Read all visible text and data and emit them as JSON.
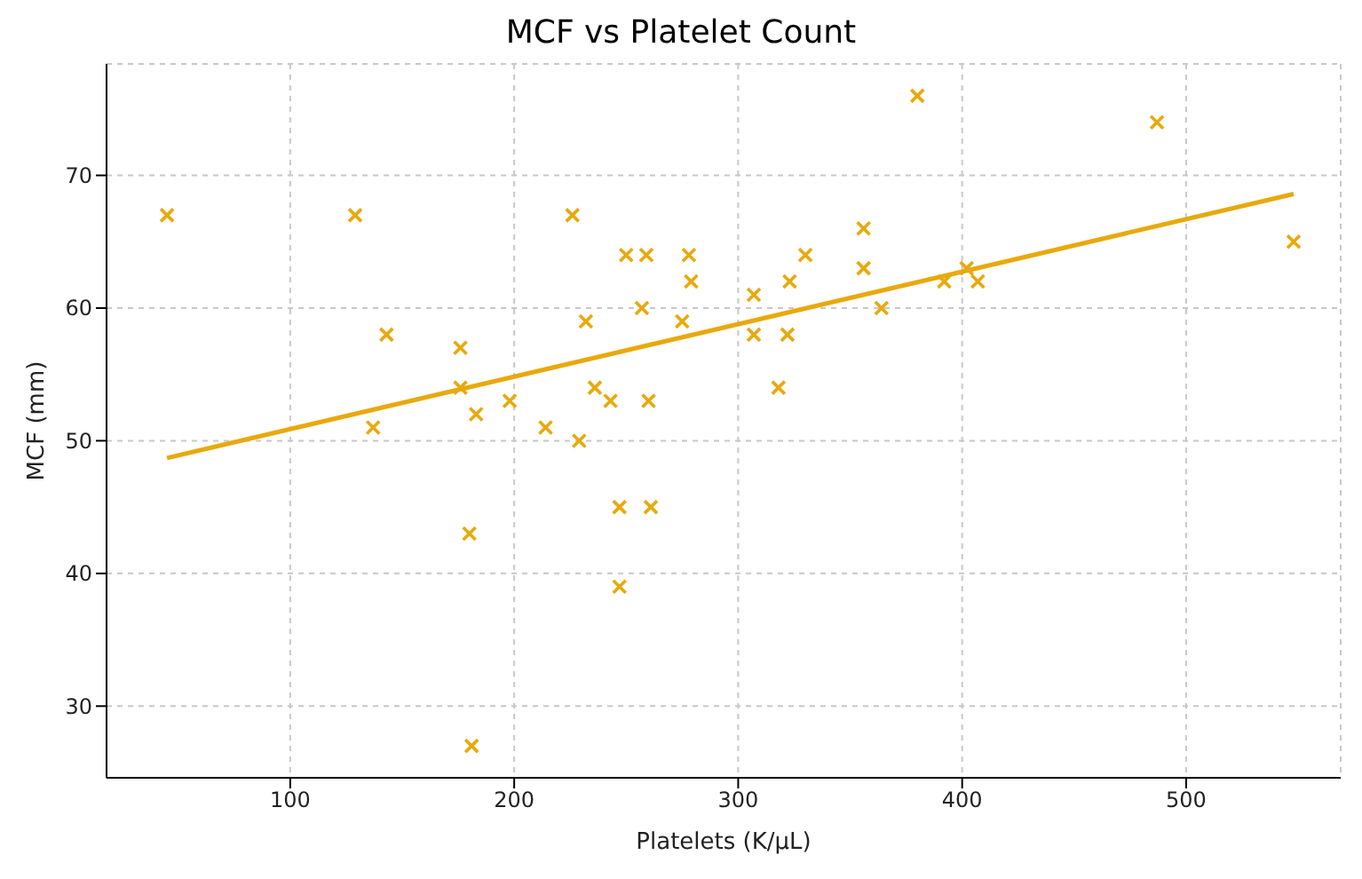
{
  "chart_data": {
    "type": "scatter",
    "title": "MCF vs Platelet Count",
    "xlabel": "Platelets (K/µL)",
    "ylabel": "MCF (mm)",
    "xlim": [
      18,
      569
    ],
    "ylim": [
      24.6,
      78.4
    ],
    "xticks": [
      100,
      200,
      300,
      400,
      500
    ],
    "yticks": [
      30,
      40,
      50,
      60,
      70
    ],
    "grid": true,
    "series": [
      {
        "marker": "cross",
        "color": "#e8a90c",
        "x": [
          45,
          129,
          143,
          137,
          176,
          176,
          183,
          180,
          181,
          198,
          214,
          226,
          229,
          232,
          236,
          243,
          250,
          259,
          247,
          247,
          257,
          260,
          261,
          278,
          279,
          275,
          307,
          307,
          318,
          322,
          323,
          330,
          356,
          356,
          364,
          380,
          392,
          402,
          407,
          487,
          548
        ],
        "values": [
          67,
          67,
          58,
          51,
          57,
          54,
          52,
          43,
          27,
          53,
          51,
          67,
          50,
          59,
          54,
          53,
          64,
          64,
          45,
          39,
          60,
          53,
          45,
          64,
          62,
          59,
          61,
          58,
          54,
          58,
          62,
          64,
          66,
          63,
          60,
          76,
          62,
          63,
          62,
          74,
          65
        ]
      },
      {
        "type": "line",
        "color": "#e8a90c",
        "x": [
          45,
          548
        ],
        "values": [
          48.7,
          68.6
        ]
      }
    ]
  }
}
